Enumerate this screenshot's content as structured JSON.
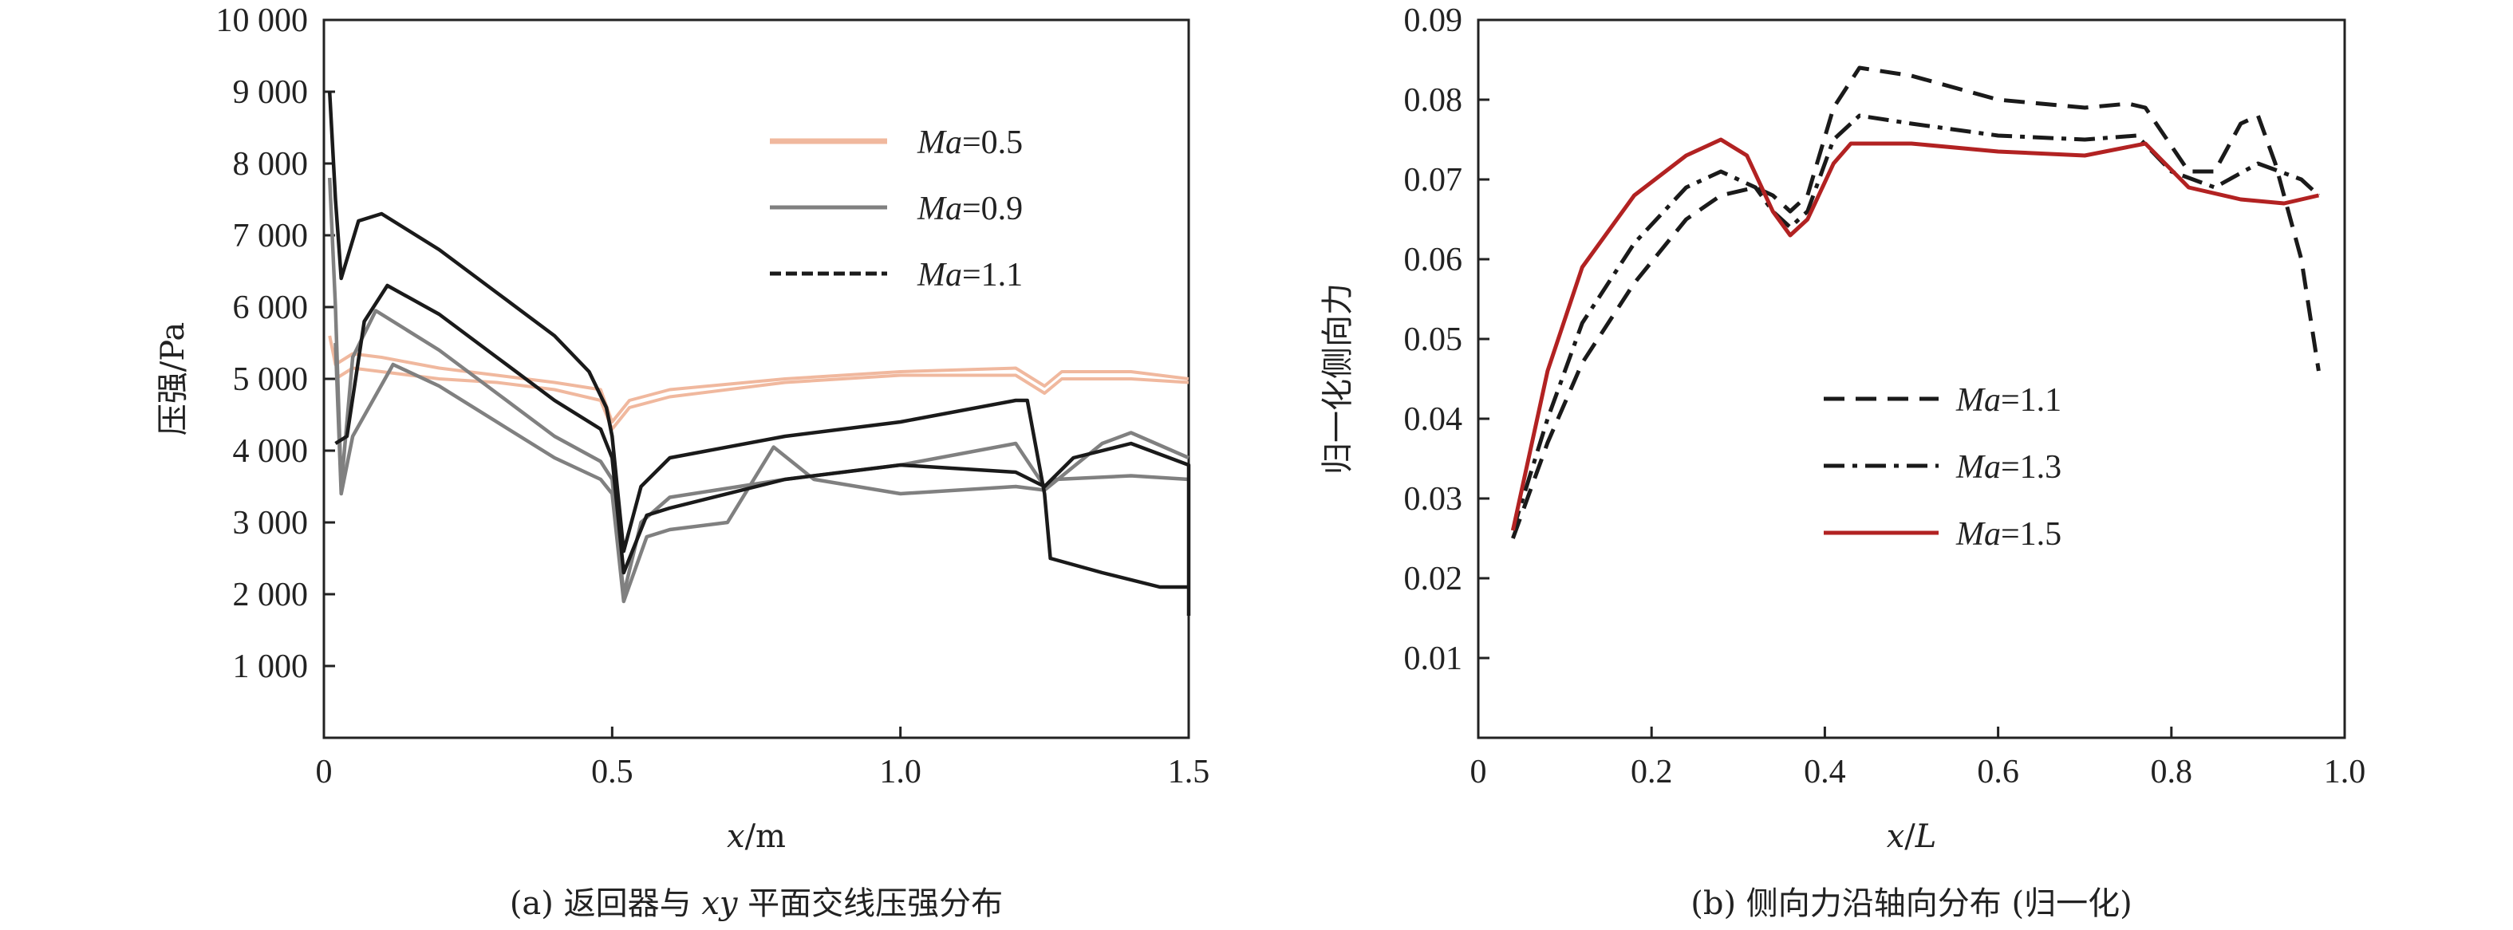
{
  "chart_data": [
    {
      "type": "line",
      "caption": "(a) 返回器与 xy 平面交线压强分布",
      "xlabel": "x/m",
      "ylabel": "压强/Pa",
      "xlim": [
        0,
        1.5
      ],
      "ylim": [
        0,
        10000
      ],
      "x_ticks": [
        "0",
        "0.5",
        "1.0",
        "1.5"
      ],
      "y_ticks": [
        "1 000",
        "2 000",
        "3 000",
        "4 000",
        "5 000",
        "6 000",
        "7 000",
        "8 000",
        "9 000",
        "10 000"
      ],
      "legend_position": "top-right",
      "series": [
        {
          "name": "Ma=0.5",
          "color": "#f0b89e",
          "dash": "solid",
          "lines": [
            [
              [
                0.01,
                5600
              ],
              [
                0.02,
                5200
              ],
              [
                0.05,
                5350
              ],
              [
                0.1,
                5300
              ],
              [
                0.2,
                5150
              ],
              [
                0.3,
                5050
              ],
              [
                0.4,
                4950
              ],
              [
                0.48,
                4850
              ],
              [
                0.5,
                4400
              ],
              [
                0.53,
                4700
              ],
              [
                0.6,
                4850
              ],
              [
                0.8,
                5000
              ],
              [
                1.0,
                5100
              ],
              [
                1.2,
                5150
              ],
              [
                1.25,
                4900
              ],
              [
                1.28,
                5100
              ],
              [
                1.4,
                5100
              ],
              [
                1.5,
                5000
              ]
            ],
            [
              [
                0.02,
                5000
              ],
              [
                0.05,
                5150
              ],
              [
                0.1,
                5100
              ],
              [
                0.2,
                5000
              ],
              [
                0.3,
                4950
              ],
              [
                0.4,
                4850
              ],
              [
                0.48,
                4700
              ],
              [
                0.5,
                4300
              ],
              [
                0.53,
                4600
              ],
              [
                0.6,
                4750
              ],
              [
                0.8,
                4950
              ],
              [
                1.0,
                5050
              ],
              [
                1.2,
                5050
              ],
              [
                1.25,
                4800
              ],
              [
                1.28,
                5000
              ],
              [
                1.4,
                5000
              ],
              [
                1.5,
                4950
              ]
            ]
          ]
        },
        {
          "name": "Ma=0.9",
          "color": "#808080",
          "dash": "solid",
          "lines": [
            [
              [
                0.01,
                7800
              ],
              [
                0.02,
                6000
              ],
              [
                0.03,
                3500
              ],
              [
                0.05,
                5300
              ],
              [
                0.09,
                5950
              ],
              [
                0.2,
                5400
              ],
              [
                0.3,
                4800
              ],
              [
                0.4,
                4200
              ],
              [
                0.48,
                3850
              ],
              [
                0.5,
                3600
              ],
              [
                0.52,
                2000
              ],
              [
                0.55,
                3000
              ],
              [
                0.6,
                3350
              ],
              [
                0.8,
                3600
              ],
              [
                1.0,
                3800
              ],
              [
                1.2,
                4100
              ],
              [
                1.25,
                3500
              ],
              [
                1.27,
                3600
              ],
              [
                1.4,
                3650
              ],
              [
                1.5,
                3600
              ]
            ],
            [
              [
                0.02,
                5500
              ],
              [
                0.03,
                3400
              ],
              [
                0.05,
                4200
              ],
              [
                0.12,
                5200
              ],
              [
                0.2,
                4900
              ],
              [
                0.3,
                4400
              ],
              [
                0.4,
                3900
              ],
              [
                0.48,
                3600
              ],
              [
                0.5,
                3400
              ],
              [
                0.52,
                1900
              ],
              [
                0.56,
                2800
              ],
              [
                0.6,
                2900
              ],
              [
                0.7,
                3000
              ],
              [
                0.78,
                4050
              ],
              [
                0.85,
                3600
              ],
              [
                1.0,
                3400
              ],
              [
                1.2,
                3500
              ],
              [
                1.25,
                3450
              ],
              [
                1.35,
                4100
              ],
              [
                1.4,
                4250
              ],
              [
                1.5,
                3900
              ]
            ]
          ]
        },
        {
          "name": "Ma=1.1",
          "color": "#1a1a1a",
          "dash": "solid",
          "lines": [
            [
              [
                0.01,
                9000
              ],
              [
                0.02,
                7500
              ],
              [
                0.03,
                6400
              ],
              [
                0.06,
                7200
              ],
              [
                0.1,
                7300
              ],
              [
                0.2,
                6800
              ],
              [
                0.3,
                6200
              ],
              [
                0.4,
                5600
              ],
              [
                0.46,
                5100
              ],
              [
                0.49,
                4600
              ],
              [
                0.5,
                4200
              ],
              [
                0.52,
                2600
              ],
              [
                0.55,
                3500
              ],
              [
                0.6,
                3900
              ],
              [
                0.8,
                4200
              ],
              [
                1.0,
                4400
              ],
              [
                1.2,
                4700
              ],
              [
                1.22,
                4700
              ],
              [
                1.25,
                3400
              ],
              [
                1.26,
                2500
              ],
              [
                1.35,
                2300
              ],
              [
                1.45,
                2100
              ],
              [
                1.5,
                2100
              ]
            ],
            [
              [
                0.02,
                4100
              ],
              [
                0.04,
                4200
              ],
              [
                0.07,
                5800
              ],
              [
                0.11,
                6300
              ],
              [
                0.2,
                5900
              ],
              [
                0.3,
                5300
              ],
              [
                0.4,
                4700
              ],
              [
                0.48,
                4300
              ],
              [
                0.5,
                3900
              ],
              [
                0.52,
                2300
              ],
              [
                0.56,
                3100
              ],
              [
                0.6,
                3200
              ],
              [
                0.8,
                3600
              ],
              [
                1.0,
                3800
              ],
              [
                1.2,
                3700
              ],
              [
                1.25,
                3500
              ],
              [
                1.3,
                3900
              ],
              [
                1.4,
                4100
              ],
              [
                1.5,
                3800
              ],
              [
                1.5,
                1700
              ]
            ]
          ]
        }
      ]
    },
    {
      "type": "line",
      "caption": "(b) 侧向力沿轴向分布 (归一化)",
      "xlabel": "x/L",
      "ylabel": "归一化侧向力",
      "xlim": [
        0,
        1.0
      ],
      "ylim": [
        0,
        0.09
      ],
      "x_ticks": [
        "0",
        "0.2",
        "0.4",
        "0.6",
        "0.8",
        "1.0"
      ],
      "y_ticks": [
        "0.01",
        "0.02",
        "0.03",
        "0.04",
        "0.05",
        "0.06",
        "0.07",
        "0.08",
        "0.09"
      ],
      "legend_position": "center",
      "series": [
        {
          "name": "Ma=1.1",
          "color": "#1a1a1a",
          "dash": "dashed",
          "points": [
            [
              0.04,
              0.025
            ],
            [
              0.08,
              0.037
            ],
            [
              0.12,
              0.047
            ],
            [
              0.18,
              0.057
            ],
            [
              0.24,
              0.065
            ],
            [
              0.28,
              0.068
            ],
            [
              0.32,
              0.069
            ],
            [
              0.34,
              0.068
            ],
            [
              0.36,
              0.066
            ],
            [
              0.38,
              0.068
            ],
            [
              0.41,
              0.079
            ],
            [
              0.44,
              0.084
            ],
            [
              0.5,
              0.083
            ],
            [
              0.6,
              0.08
            ],
            [
              0.7,
              0.079
            ],
            [
              0.75,
              0.0795
            ],
            [
              0.77,
              0.079
            ],
            [
              0.82,
              0.071
            ],
            [
              0.85,
              0.071
            ],
            [
              0.88,
              0.077
            ],
            [
              0.9,
              0.078
            ],
            [
              0.92,
              0.072
            ],
            [
              0.95,
              0.06
            ],
            [
              0.97,
              0.046
            ]
          ]
        },
        {
          "name": "Ma=1.3",
          "color": "#1a1a1a",
          "dash": "dashdot",
          "points": [
            [
              0.04,
              0.026
            ],
            [
              0.08,
              0.04
            ],
            [
              0.12,
              0.052
            ],
            [
              0.18,
              0.062
            ],
            [
              0.24,
              0.069
            ],
            [
              0.28,
              0.071
            ],
            [
              0.32,
              0.069
            ],
            [
              0.34,
              0.066
            ],
            [
              0.36,
              0.064
            ],
            [
              0.38,
              0.066
            ],
            [
              0.41,
              0.075
            ],
            [
              0.44,
              0.078
            ],
            [
              0.5,
              0.077
            ],
            [
              0.6,
              0.0755
            ],
            [
              0.7,
              0.075
            ],
            [
              0.76,
              0.0755
            ],
            [
              0.8,
              0.071
            ],
            [
              0.85,
              0.069
            ],
            [
              0.9,
              0.072
            ],
            [
              0.95,
              0.07
            ],
            [
              0.97,
              0.068
            ]
          ]
        },
        {
          "name": "Ma=1.5",
          "color": "#b22222",
          "dash": "solid",
          "points": [
            [
              0.04,
              0.026
            ],
            [
              0.08,
              0.046
            ],
            [
              0.12,
              0.059
            ],
            [
              0.18,
              0.068
            ],
            [
              0.24,
              0.073
            ],
            [
              0.28,
              0.075
            ],
            [
              0.31,
              0.073
            ],
            [
              0.34,
              0.066
            ],
            [
              0.36,
              0.063
            ],
            [
              0.38,
              0.065
            ],
            [
              0.41,
              0.072
            ],
            [
              0.43,
              0.0745
            ],
            [
              0.5,
              0.0745
            ],
            [
              0.6,
              0.0735
            ],
            [
              0.7,
              0.073
            ],
            [
              0.77,
              0.0745
            ],
            [
              0.82,
              0.069
            ],
            [
              0.88,
              0.0675
            ],
            [
              0.93,
              0.067
            ],
            [
              0.97,
              0.068
            ]
          ]
        }
      ]
    }
  ]
}
